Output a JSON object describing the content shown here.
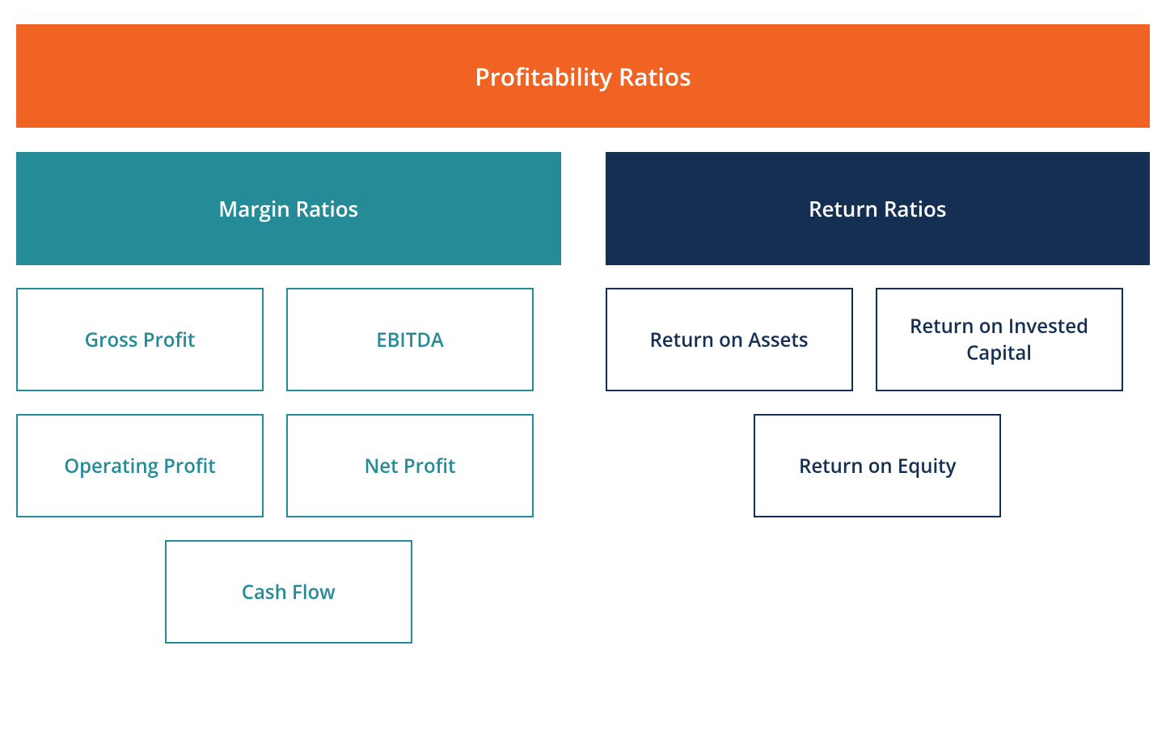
{
  "header": {
    "label": "Profitability Ratios",
    "bg_color": "#f06322",
    "text_color": "#ffffff",
    "height": 128,
    "fontsize": 30
  },
  "column_gap": 55,
  "subheader_height": 140,
  "subheader_fontsize": 26,
  "item_width": 306,
  "item_height": 128,
  "item_fontsize": 24,
  "item_gap": 28,
  "item_border_width": 2,
  "columns": {
    "left": {
      "label": "Margin Ratios",
      "bg_color": "#258b97",
      "text_color": "#ffffff",
      "item_border_color": "#258b97",
      "item_text_color": "#258b97",
      "items_row1": [
        "Gross Profit",
        "EBITDA"
      ],
      "items_row2": [
        "Operating Profit",
        "Net Profit"
      ],
      "items_row3": [
        "Cash Flow"
      ]
    },
    "right": {
      "label": "Return Ratios",
      "bg_color": "#152f52",
      "text_color": "#ffffff",
      "item_border_color": "#152f52",
      "item_text_color": "#152f52",
      "items_row1": [
        "Return on Assets",
        "Return on Invested Capital"
      ],
      "items_row2": [
        "Return on Equity"
      ]
    }
  }
}
